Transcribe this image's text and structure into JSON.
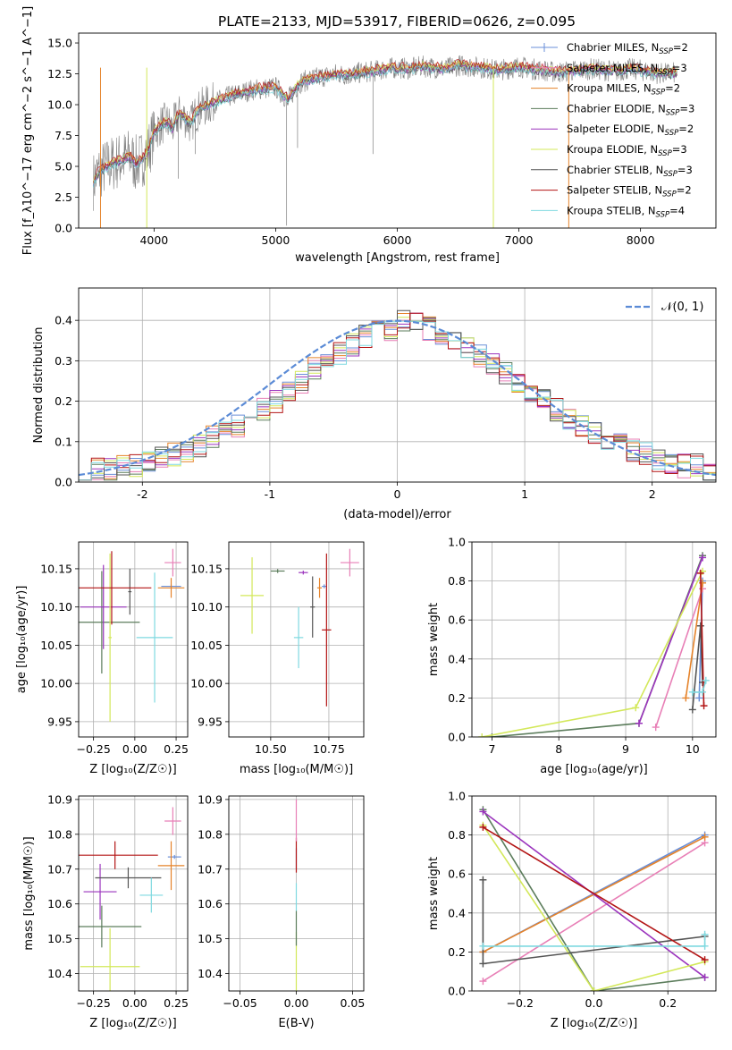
{
  "figure": {
    "title": "PLATE=2133, MJD=53917, FIBERID=0626, z=0.095"
  },
  "colors": {
    "Chabrier MILES": "#6a8fd8",
    "Salpeter MILES": "#e87fb6",
    "Kroupa MILES": "#e5832a",
    "Chabrier ELODIE": "#5c7d5c",
    "Salpeter ELODIE": "#9b34bd",
    "Kroupa ELODIE": "#d3e85a",
    "Chabrier STELIB": "#555555",
    "Salpeter STELIB": "#b31515",
    "Kroupa STELIB": "#7fd9e0"
  },
  "chart_data": [
    {
      "id": "spectrum",
      "type": "line",
      "title": "PLATE=2133, MJD=53917, FIBERID=0626, z=0.095",
      "xlabel": "wavelength [Angstrom, rest frame]",
      "ylabel": "Flux [f_λ10^−17 erg cm^−2 s^−1 A^−1]",
      "xlim": [
        3380,
        8620
      ],
      "ylim": [
        0,
        15.8
      ],
      "xticks": [
        4000,
        5000,
        6000,
        7000,
        8000
      ],
      "yticks": [
        0.0,
        2.5,
        5.0,
        7.5,
        10.0,
        12.5,
        15.0
      ],
      "ytick_labels": [
        "0.0",
        "2.5",
        "5.0",
        "7.5",
        "10.0",
        "12.5",
        "15.0"
      ],
      "legend_position": "right",
      "grid": false,
      "data_x": [
        3500,
        3550,
        3600,
        3650,
        3700,
        3750,
        3800,
        3850,
        3900,
        3950,
        4000,
        4050,
        4100,
        4150,
        4200,
        4250,
        4300,
        4350,
        4400,
        4500,
        4600,
        4700,
        4800,
        4900,
        5000,
        5100,
        5200,
        5300,
        5400,
        5500,
        5600,
        5700,
        5800,
        5900,
        6000,
        6100,
        6200,
        6300,
        6400,
        6500,
        6600,
        6700,
        6800,
        6900,
        7000,
        7100,
        7200,
        7300,
        7400,
        7500,
        7600,
        7700,
        7800,
        7900,
        8000,
        8100,
        8200,
        8300
      ],
      "data_y": [
        3.8,
        4.6,
        4.9,
        5.2,
        5.4,
        5.6,
        5.8,
        5.2,
        5.6,
        6.2,
        7.8,
        8.3,
        8.6,
        8.1,
        9.2,
        9.0,
        8.4,
        9.4,
        9.8,
        10.2,
        10.6,
        10.9,
        11.2,
        11.3,
        11.4,
        10.4,
        11.8,
        12.1,
        12.3,
        12.5,
        12.4,
        12.6,
        12.7,
        12.9,
        13.0,
        12.9,
        13.1,
        13.0,
        12.9,
        13.2,
        13.1,
        13.0,
        12.8,
        12.9,
        13.1,
        12.9,
        12.8,
        12.6,
        12.7,
        12.8,
        12.9,
        12.8,
        12.7,
        12.9,
        12.8,
        12.6,
        12.5,
        12.6
      ],
      "data_color": "#808080",
      "series": [
        {
          "name": "Chabrier MILES, N_SSP=2",
          "label_main": "Chabrier MILES, N",
          "label_sub": "SSP",
          "label_end": "=2",
          "color": "#6a8fd8",
          "offset": 0.05
        },
        {
          "name": "Salpeter MILES, N_SSP=3",
          "label_main": "Salpeter MILES, N",
          "label_sub": "SSP",
          "label_end": "=3",
          "color": "#e87fb6",
          "offset": 0.0
        },
        {
          "name": "Kroupa MILES, N_SSP=2",
          "label_main": "Kroupa MILES, N",
          "label_sub": "SSP",
          "label_end": "=2",
          "color": "#e5832a",
          "offset": 0.1
        },
        {
          "name": "Chabrier ELODIE, N_SSP=3",
          "label_main": "Chabrier ELODIE, N",
          "label_sub": "SSP",
          "label_end": "=3",
          "color": "#5c7d5c",
          "offset": -0.05
        },
        {
          "name": "Salpeter ELODIE, N_SSP=2",
          "label_main": "Salpeter ELODIE, N",
          "label_sub": "SSP",
          "label_end": "=2",
          "color": "#9b34bd",
          "offset": -0.1
        },
        {
          "name": "Kroupa ELODIE, N_SSP=3",
          "label_main": "Kroupa ELODIE, N",
          "label_sub": "SSP",
          "label_end": "=3",
          "color": "#d3e85a",
          "offset": 0.15
        },
        {
          "name": "Chabrier STELIB, N_SSP=3",
          "label_main": "Chabrier STELIB, N",
          "label_sub": "SSP",
          "label_end": "=3",
          "color": "#555555",
          "offset": -0.15
        },
        {
          "name": "Salpeter STELIB, N_SSP=2",
          "label_main": "Salpeter STELIB, N",
          "label_sub": "SSP",
          "label_end": "=2",
          "color": "#b31515",
          "offset": 0.2
        },
        {
          "name": "Kroupa STELIB, N_SSP=4",
          "label_main": "Kroupa STELIB, N",
          "label_sub": "SSP",
          "label_end": "=4",
          "color": "#7fd9e0",
          "offset": -0.2
        }
      ],
      "verticals": [
        {
          "x": 6790,
          "color": "#d3e85a"
        },
        {
          "x": 7410,
          "color": "#e5832a"
        },
        {
          "x": 3940,
          "color": "#d3e85a"
        },
        {
          "x": 3560,
          "color": "#e5832a"
        }
      ]
    },
    {
      "id": "residuals",
      "type": "histogram",
      "xlabel": "(data-model)/error",
      "ylabel": "Normed distribution",
      "xlim": [
        -2.5,
        2.5
      ],
      "ylim": [
        0,
        0.48
      ],
      "xticks": [
        -2,
        -1,
        0,
        1,
        2
      ],
      "yticks": [
        0.0,
        0.1,
        0.2,
        0.3,
        0.4
      ],
      "ytick_labels": [
        "0.0",
        "0.1",
        "0.2",
        "0.3",
        "0.4"
      ],
      "grid": true,
      "bins_start": -2.5,
      "bin_width": 0.1,
      "base": [
        0.02,
        0.03,
        0.03,
        0.04,
        0.04,
        0.05,
        0.06,
        0.07,
        0.08,
        0.09,
        0.11,
        0.12,
        0.14,
        0.16,
        0.18,
        0.2,
        0.23,
        0.25,
        0.28,
        0.3,
        0.32,
        0.34,
        0.36,
        0.37,
        0.38,
        0.4,
        0.39,
        0.38,
        0.37,
        0.35,
        0.33,
        0.31,
        0.29,
        0.27,
        0.25,
        0.22,
        0.2,
        0.18,
        0.16,
        0.14,
        0.12,
        0.1,
        0.09,
        0.08,
        0.07,
        0.05,
        0.05,
        0.04,
        0.04,
        0.03
      ],
      "legend_label": "𝒩(0, 1)",
      "gauss_color": "#5b8bd6"
    },
    {
      "id": "age_vs_Z",
      "type": "scatter",
      "xlabel": "Z [log₁₀(Z/Z☉)]",
      "ylabel": "age  [log₁₀(age/yr)]",
      "xlim": [
        -0.34,
        0.32
      ],
      "ylim": [
        9.93,
        10.185
      ],
      "xticks": [
        -0.25,
        0.0,
        0.25
      ],
      "xtick_labels": [
        "−0.25",
        "0.00",
        "0.25"
      ],
      "yticks": [
        9.95,
        10.0,
        10.05,
        10.1,
        10.15
      ],
      "ytick_labels": [
        "9.95",
        "10.00",
        "10.05",
        "10.10",
        "10.15"
      ],
      "grid": true,
      "points": [
        {
          "series": "Chabrier MILES",
          "x": 0.22,
          "y": 10.127,
          "xerr": 0.06,
          "yerr": 0.0
        },
        {
          "series": "Salpeter MILES",
          "x": 0.23,
          "y": 10.158,
          "xerr": 0.05,
          "yerr": 0.018
        },
        {
          "series": "Kroupa MILES",
          "x": 0.22,
          "y": 10.125,
          "xerr": 0.08,
          "yerr": 0.013
        },
        {
          "series": "Chabrier ELODIE",
          "x": -0.2,
          "y": 10.08,
          "xerr": 0.23,
          "yerr": 0.067
        },
        {
          "series": "Salpeter ELODIE",
          "x": -0.19,
          "y": 10.1,
          "xerr": 0.14,
          "yerr": 0.055
        },
        {
          "series": "Kroupa ELODIE",
          "x": -0.15,
          "y": 10.06,
          "xerr": 0.01,
          "yerr": 0.11
        },
        {
          "series": "Chabrier STELIB",
          "x": -0.03,
          "y": 10.12,
          "xerr": 0.01,
          "yerr": 0.03
        },
        {
          "series": "Salpeter STELIB",
          "x": -0.14,
          "y": 10.125,
          "xerr": 0.24,
          "yerr": 0.048
        },
        {
          "series": "Kroupa STELIB",
          "x": 0.12,
          "y": 10.06,
          "xerr": 0.11,
          "yerr": 0.085
        }
      ]
    },
    {
      "id": "age_vs_mass",
      "type": "scatter",
      "xlabel": "mass [log₁₀(M/M☉)]",
      "ylabel": "",
      "xlim": [
        10.32,
        10.9
      ],
      "ylim": [
        9.93,
        10.185
      ],
      "xticks": [
        10.5,
        10.75
      ],
      "xtick_labels": [
        "10.50",
        "10.75"
      ],
      "yticks": [
        9.95,
        10.0,
        10.05,
        10.1,
        10.15
      ],
      "ytick_labels": [
        "9.95",
        "10.00",
        "10.05",
        "10.10",
        "10.15"
      ],
      "grid": true,
      "points": [
        {
          "series": "Chabrier MILES",
          "x": 10.73,
          "y": 10.127,
          "xerr": 0.01,
          "yerr": 0.0
        },
        {
          "series": "Salpeter MILES",
          "x": 10.84,
          "y": 10.158,
          "xerr": 0.04,
          "yerr": 0.018
        },
        {
          "series": "Kroupa MILES",
          "x": 10.71,
          "y": 10.125,
          "xerr": 0.01,
          "yerr": 0.013
        },
        {
          "series": "Chabrier ELODIE",
          "x": 10.53,
          "y": 10.147,
          "xerr": 0.03,
          "yerr": 0.0
        },
        {
          "series": "Salpeter ELODIE",
          "x": 10.64,
          "y": 10.145,
          "xerr": 0.02,
          "yerr": 0.0
        },
        {
          "series": "Kroupa ELODIE",
          "x": 10.42,
          "y": 10.115,
          "xerr": 0.05,
          "yerr": 0.05
        },
        {
          "series": "Chabrier STELIB",
          "x": 10.68,
          "y": 10.1,
          "xerr": 0.01,
          "yerr": 0.04
        },
        {
          "series": "Salpeter STELIB",
          "x": 10.74,
          "y": 10.07,
          "xerr": 0.02,
          "yerr": 0.1
        },
        {
          "series": "Kroupa STELIB",
          "x": 10.62,
          "y": 10.06,
          "xerr": 0.02,
          "yerr": 0.04
        }
      ]
    },
    {
      "id": "weight_vs_age",
      "type": "line",
      "xlabel": "age  [log₁₀(age/yr)]",
      "ylabel": "mass weight",
      "xlim": [
        6.7,
        10.35
      ],
      "ylim": [
        0,
        1
      ],
      "xticks": [
        7,
        8,
        9,
        10
      ],
      "yticks": [
        0.0,
        0.2,
        0.4,
        0.6,
        0.8,
        1.0
      ],
      "ytick_labels": [
        "0.0",
        "0.2",
        "0.4",
        "0.6",
        "0.8",
        "1.0"
      ],
      "grid": true,
      "series": [
        {
          "series": "Chabrier MILES",
          "x": [
            10.1,
            10.15
          ],
          "y": [
            0.2,
            0.8
          ]
        },
        {
          "series": "Salpeter MILES",
          "x": [
            9.45,
            10.15
          ],
          "y": [
            0.05,
            0.76
          ]
        },
        {
          "series": "Kroupa MILES",
          "x": [
            9.9,
            10.15
          ],
          "y": [
            0.2,
            0.79
          ]
        },
        {
          "series": "Chabrier ELODIE",
          "x": [
            7.0,
            9.2,
            10.15
          ],
          "y": [
            0.0,
            0.07,
            0.93
          ]
        },
        {
          "series": "Salpeter ELODIE",
          "x": [
            9.2,
            10.15
          ],
          "y": [
            0.07,
            0.92
          ]
        },
        {
          "series": "Kroupa ELODIE",
          "x": [
            6.85,
            9.15,
            10.15
          ],
          "y": [
            0.0,
            0.15,
            0.85
          ]
        },
        {
          "series": "Chabrier STELIB",
          "x": [
            10.0,
            10.12,
            10.15
          ],
          "y": [
            0.14,
            0.57,
            0.28
          ]
        },
        {
          "series": "Salpeter STELIB",
          "x": [
            10.12,
            10.17
          ],
          "y": [
            0.84,
            0.16
          ]
        },
        {
          "series": "Kroupa STELIB",
          "x": [
            10.0,
            10.15,
            10.2
          ],
          "y": [
            0.23,
            0.23,
            0.29
          ]
        }
      ]
    },
    {
      "id": "mass_vs_Z",
      "type": "scatter",
      "xlabel": "Z [log₁₀(Z/Z☉)]",
      "ylabel": "mass [log₁₀(M/M☉)]",
      "xlim": [
        -0.34,
        0.32
      ],
      "ylim": [
        10.35,
        10.91
      ],
      "xticks": [
        -0.25,
        0.0,
        0.25
      ],
      "xtick_labels": [
        "−0.25",
        "0.00",
        "0.25"
      ],
      "yticks": [
        10.4,
        10.5,
        10.6,
        10.7,
        10.8,
        10.9
      ],
      "ytick_labels": [
        "10.4",
        "10.5",
        "10.6",
        "10.7",
        "10.8",
        "10.9"
      ],
      "grid": true,
      "points": [
        {
          "series": "Chabrier MILES",
          "x": 0.24,
          "y": 10.735,
          "xerr": 0.04,
          "yerr": 0.0
        },
        {
          "series": "Salpeter MILES",
          "x": 0.23,
          "y": 10.838,
          "xerr": 0.05,
          "yerr": 0.04
        },
        {
          "series": "Kroupa MILES",
          "x": 0.22,
          "y": 10.71,
          "xerr": 0.08,
          "yerr": 0.07
        },
        {
          "series": "Chabrier ELODIE",
          "x": -0.2,
          "y": 10.535,
          "xerr": 0.24,
          "yerr": 0.06
        },
        {
          "series": "Salpeter ELODIE",
          "x": -0.21,
          "y": 10.635,
          "xerr": 0.1,
          "yerr": 0.08
        },
        {
          "series": "Kroupa ELODIE",
          "x": -0.15,
          "y": 10.42,
          "xerr": 0.18,
          "yerr": 0.11
        },
        {
          "series": "Chabrier STELIB",
          "x": -0.04,
          "y": 10.675,
          "xerr": 0.2,
          "yerr": 0.03
        },
        {
          "series": "Salpeter STELIB",
          "x": -0.12,
          "y": 10.74,
          "xerr": 0.26,
          "yerr": 0.04
        },
        {
          "series": "Kroupa STELIB",
          "x": 0.1,
          "y": 10.625,
          "xerr": 0.07,
          "yerr": 0.05
        }
      ]
    },
    {
      "id": "mass_vs_EBV",
      "type": "scatter",
      "xlabel": "E(B-V)",
      "ylabel": "",
      "xlim": [
        -0.06,
        0.06
      ],
      "ylim": [
        10.35,
        10.91
      ],
      "xticks": [
        -0.05,
        0.0,
        0.05
      ],
      "xtick_labels": [
        "−0.05",
        "0.00",
        "0.05"
      ],
      "yticks": [
        10.4,
        10.5,
        10.6,
        10.7,
        10.8,
        10.9
      ],
      "ytick_labels": [
        "10.4",
        "10.5",
        "10.6",
        "10.7",
        "10.8",
        "10.9"
      ],
      "grid": true,
      "points": [
        {
          "series": "Kroupa ELODIE",
          "x": 0.0,
          "y": 10.42,
          "xerr": 0.0,
          "yerr": 0.1
        },
        {
          "series": "Chabrier ELODIE",
          "x": 0.0,
          "y": 10.53,
          "xerr": 0.0,
          "yerr": 0.05
        },
        {
          "series": "Kroupa STELIB",
          "x": 0.0,
          "y": 10.62,
          "xerr": 0.0,
          "yerr": 0.04
        },
        {
          "series": "Chabrier MILES",
          "x": 0.0,
          "y": 10.73,
          "xerr": 0.0,
          "yerr": 0.03
        },
        {
          "series": "Salpeter STELIB",
          "x": 0.0,
          "y": 10.74,
          "xerr": 0.0,
          "yerr": 0.05
        },
        {
          "series": "Salpeter MILES",
          "x": 0.0,
          "y": 10.84,
          "xerr": 0.0,
          "yerr": 0.06
        }
      ]
    },
    {
      "id": "weight_vs_Z",
      "type": "line",
      "xlabel": "Z [log₁₀(Z/Z☉)]",
      "ylabel": "mass weight",
      "xlim": [
        -0.33,
        0.33
      ],
      "ylim": [
        0,
        1
      ],
      "xticks": [
        -0.2,
        0.0,
        0.2
      ],
      "xtick_labels": [
        "−0.2",
        "0.0",
        "0.2"
      ],
      "yticks": [
        0.0,
        0.2,
        0.4,
        0.6,
        0.8,
        1.0
      ],
      "ytick_labels": [
        "0.0",
        "0.2",
        "0.4",
        "0.6",
        "0.8",
        "1.0"
      ],
      "grid": true,
      "series": [
        {
          "series": "Chabrier MILES",
          "x": [
            -0.3,
            0.3
          ],
          "y": [
            0.2,
            0.8
          ]
        },
        {
          "series": "Salpeter MILES",
          "x": [
            -0.3,
            0.3
          ],
          "y": [
            0.05,
            0.76
          ]
        },
        {
          "series": "Kroupa MILES",
          "x": [
            -0.3,
            0.3
          ],
          "y": [
            0.2,
            0.79
          ]
        },
        {
          "series": "Chabrier ELODIE",
          "x": [
            -0.3,
            0.0,
            0.3
          ],
          "y": [
            0.93,
            0.0,
            0.07
          ]
        },
        {
          "series": "Salpeter ELODIE",
          "x": [
            -0.3,
            0.3
          ],
          "y": [
            0.92,
            0.07
          ]
        },
        {
          "series": "Kroupa ELODIE",
          "x": [
            -0.3,
            0.0,
            0.3
          ],
          "y": [
            0.85,
            0.0,
            0.15
          ]
        },
        {
          "series": "Chabrier STELIB",
          "x": [
            -0.3,
            -0.3,
            0.3
          ],
          "y": [
            0.57,
            0.14,
            0.28
          ]
        },
        {
          "series": "Salpeter STELIB",
          "x": [
            -0.3,
            0.3
          ],
          "y": [
            0.84,
            0.16
          ]
        },
        {
          "series": "Kroupa STELIB",
          "x": [
            -0.3,
            0.3,
            0.3
          ],
          "y": [
            0.23,
            0.23,
            0.29
          ]
        }
      ]
    }
  ]
}
